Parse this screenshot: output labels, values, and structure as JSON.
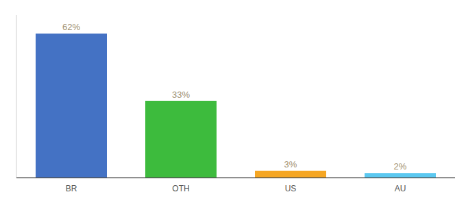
{
  "chart_data": {
    "type": "bar",
    "categories": [
      "BR",
      "OTH",
      "US",
      "AU"
    ],
    "values": [
      62,
      33,
      3,
      2
    ],
    "value_labels": [
      "62%",
      "33%",
      "3%",
      "2%"
    ],
    "colors": [
      "#4472c4",
      "#3dbb3d",
      "#f5a623",
      "#5bc8f0"
    ],
    "ylim": [
      0,
      70
    ],
    "data_labels": true,
    "tick_labels": "x"
  }
}
